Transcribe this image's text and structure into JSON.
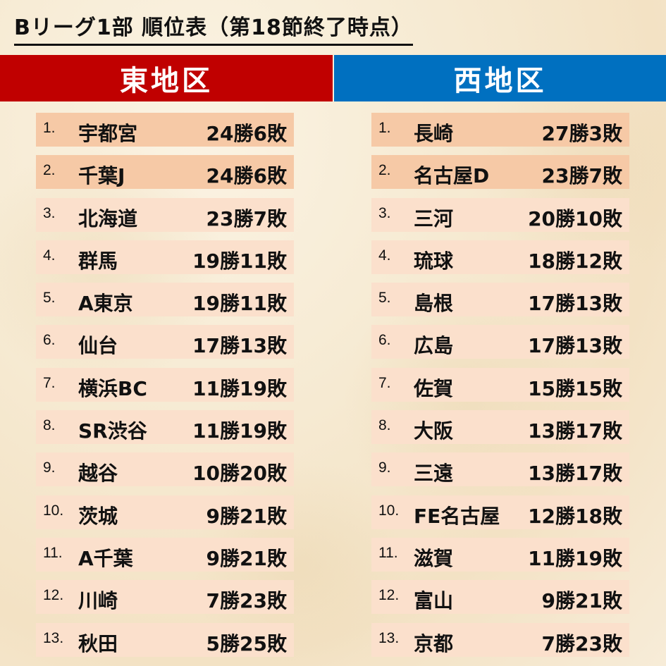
{
  "title": "Bリーグ1部 順位表（第18節終了時点）",
  "east": {
    "label": "東地区",
    "color": "#c00000",
    "rows": [
      {
        "rank": "1.",
        "team": "宇都宮",
        "record": "24勝6敗"
      },
      {
        "rank": "2.",
        "team": "千葉J",
        "record": "24勝6敗"
      },
      {
        "rank": "3.",
        "team": "北海道",
        "record": "23勝7敗"
      },
      {
        "rank": "4.",
        "team": "群馬",
        "record": "19勝11敗"
      },
      {
        "rank": "5.",
        "team": "A東京",
        "record": "19勝11敗"
      },
      {
        "rank": "6.",
        "team": "仙台",
        "record": "17勝13敗"
      },
      {
        "rank": "7.",
        "team": "横浜BC",
        "record": "11勝19敗"
      },
      {
        "rank": "8.",
        "team": "SR渋谷",
        "record": "11勝19敗"
      },
      {
        "rank": "9.",
        "team": "越谷",
        "record": "10勝20敗"
      },
      {
        "rank": "10.",
        "team": "茨城",
        "record": "9勝21敗"
      },
      {
        "rank": "11.",
        "team": "A千葉",
        "record": "9勝21敗"
      },
      {
        "rank": "12.",
        "team": "川崎",
        "record": "7勝23敗"
      },
      {
        "rank": "13.",
        "team": "秋田",
        "record": "5勝25敗"
      }
    ]
  },
  "west": {
    "label": "西地区",
    "color": "#0070c0",
    "rows": [
      {
        "rank": "1.",
        "team": "長崎",
        "record": "27勝3敗"
      },
      {
        "rank": "2.",
        "team": "名古屋D",
        "record": "23勝7敗"
      },
      {
        "rank": "3.",
        "team": "三河",
        "record": "20勝10敗"
      },
      {
        "rank": "4.",
        "team": "琉球",
        "record": "18勝12敗"
      },
      {
        "rank": "5.",
        "team": "島根",
        "record": "17勝13敗"
      },
      {
        "rank": "6.",
        "team": "広島",
        "record": "17勝13敗"
      },
      {
        "rank": "7.",
        "team": "佐賀",
        "record": "15勝15敗"
      },
      {
        "rank": "8.",
        "team": "大阪",
        "record": "13勝17敗"
      },
      {
        "rank": "9.",
        "team": "三遠",
        "record": "13勝17敗"
      },
      {
        "rank": "10.",
        "team": "FE名古屋",
        "record": "12勝18敗"
      },
      {
        "rank": "11.",
        "team": "滋賀",
        "record": "11勝19敗"
      },
      {
        "rank": "12.",
        "team": "富山",
        "record": "9勝21敗"
      },
      {
        "rank": "13.",
        "team": "京都",
        "record": "7勝23敗"
      }
    ]
  }
}
